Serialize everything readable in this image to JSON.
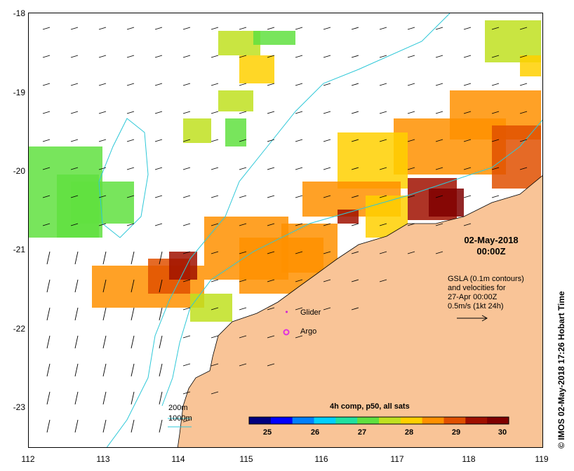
{
  "map": {
    "lon_range": [
      112,
      119
    ],
    "lat_range": [
      -23.5,
      -18
    ],
    "x_ticks": [
      "112",
      "113",
      "114",
      "115",
      "116",
      "117",
      "118",
      "119"
    ],
    "y_ticks": [
      "-18",
      "-19",
      "-20",
      "-21",
      "-22",
      "-23"
    ],
    "date": "02-May-2018",
    "time": "00:00Z",
    "credit": "© IMOS 02-May-2018 17:26 Hobart Time",
    "land_color": "#f9c497",
    "contour_color": "#2ec8d8"
  },
  "annotation": {
    "gsla_line1": "GSLA (0.1m contours)",
    "gsla_line2": "and velocities for",
    "gsla_line3": "27-Apr 00:00Z",
    "scale_label": "0.5m/s (1kt 24h)"
  },
  "markers": {
    "glider_label": "Glider",
    "argo_label": "Argo",
    "glider_color": "#d02ad0",
    "argo_color": "#e030e0"
  },
  "depth_legend": {
    "d200": "200m",
    "d1000": "1000m"
  },
  "colorbar": {
    "title": "4h comp, p50, all sats",
    "min": 24.5,
    "max": 30.5,
    "ticks": [
      "25",
      "26",
      "27",
      "28",
      "29",
      "30"
    ],
    "colors": [
      "#00007f",
      "#0000ff",
      "#0080ff",
      "#00d0ff",
      "#20e0a0",
      "#60e040",
      "#c0e020",
      "#ffd000",
      "#ff9000",
      "#e05000",
      "#a01000",
      "#7f0000"
    ]
  }
}
